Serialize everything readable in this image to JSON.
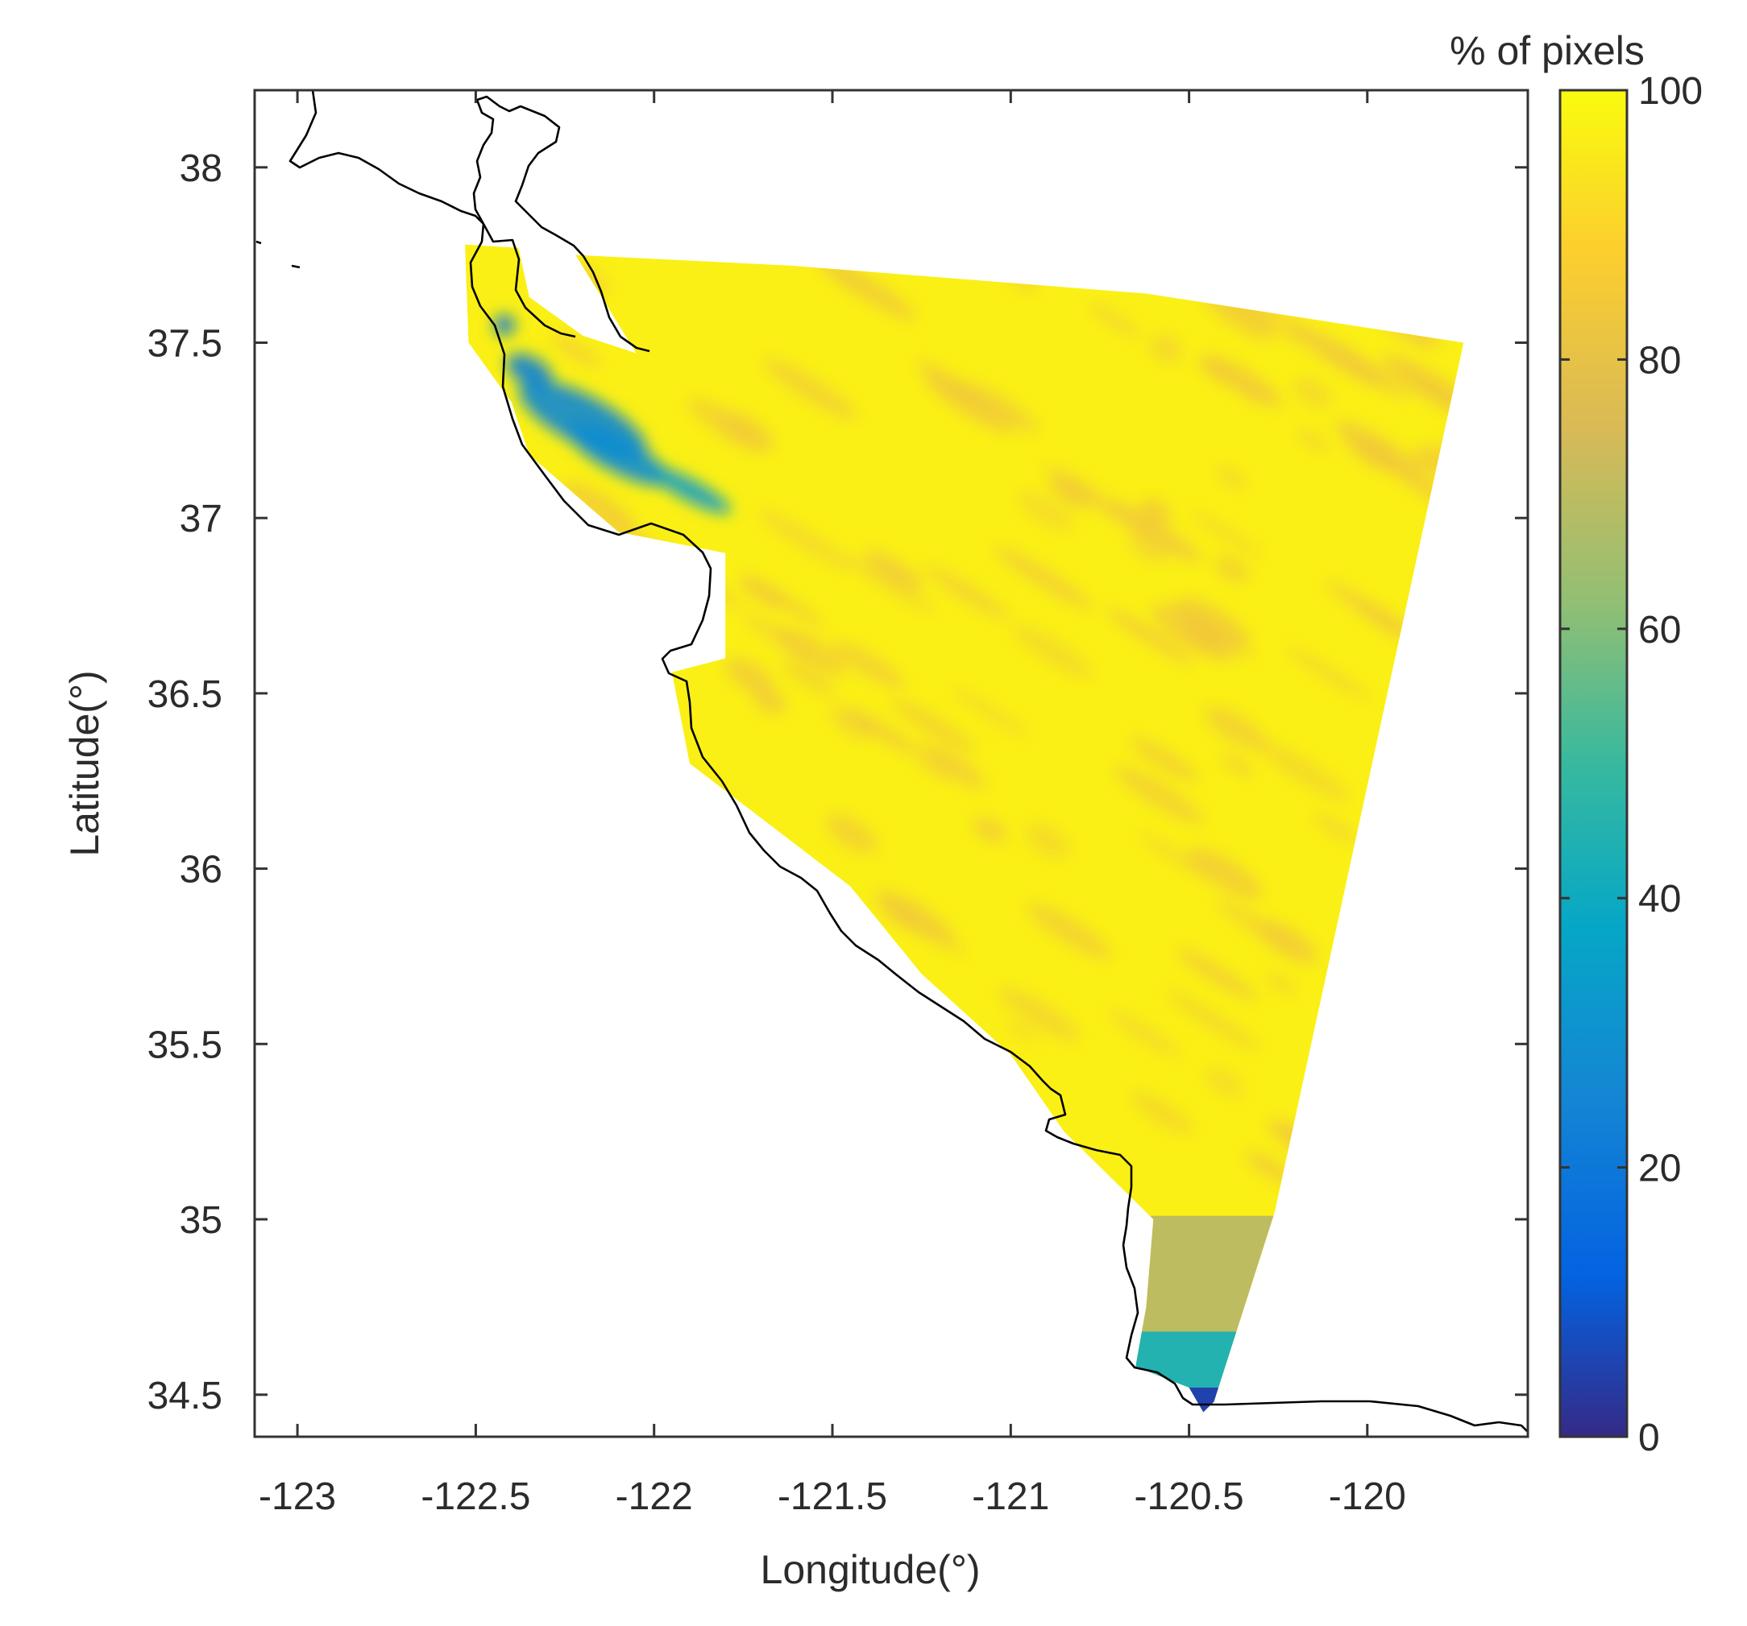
{
  "figure": {
    "x_axis_label": "Longitude(°)",
    "y_axis_label": "Latitude(°)",
    "colorbar_title": "% of pixels"
  },
  "chart_data": {
    "type": "heatmap",
    "xlabel": "Longitude(°)",
    "ylabel": "Latitude(°)",
    "xlim": [
      -123.12,
      -119.55
    ],
    "ylim": [
      34.38,
      38.22
    ],
    "x_ticks": [
      {
        "value": -123,
        "label": "-123"
      },
      {
        "value": -122.5,
        "label": "-122.5"
      },
      {
        "value": -122,
        "label": "-122"
      },
      {
        "value": -121.5,
        "label": "-121.5"
      },
      {
        "value": -121,
        "label": "-121"
      },
      {
        "value": -120.5,
        "label": "-120.5"
      },
      {
        "value": -120,
        "label": "-120"
      }
    ],
    "y_ticks": [
      {
        "value": 34.5,
        "label": "34.5"
      },
      {
        "value": 35,
        "label": "35"
      },
      {
        "value": 35.5,
        "label": "35.5"
      },
      {
        "value": 36,
        "label": "36"
      },
      {
        "value": 36.5,
        "label": "36.5"
      },
      {
        "value": 37,
        "label": "37"
      },
      {
        "value": 37.5,
        "label": "37.5"
      },
      {
        "value": 38,
        "label": "38"
      }
    ],
    "colorbar": {
      "title": "% of pixels",
      "range": [
        0,
        100
      ],
      "ticks": [
        {
          "value": 0,
          "label": "0"
        },
        {
          "value": 20,
          "label": "20"
        },
        {
          "value": 40,
          "label": "40"
        },
        {
          "value": 60,
          "label": "60"
        },
        {
          "value": 80,
          "label": "80"
        },
        {
          "value": 100,
          "label": "100"
        }
      ],
      "colormap": "parula",
      "stops": [
        {
          "value": 0,
          "color": "#352a87"
        },
        {
          "value": 12,
          "color": "#0363e1"
        },
        {
          "value": 25,
          "color": "#1485d4"
        },
        {
          "value": 38,
          "color": "#06a7c6"
        },
        {
          "value": 50,
          "color": "#38b99e"
        },
        {
          "value": 62,
          "color": "#92bf73"
        },
        {
          "value": 75,
          "color": "#d9ba56"
        },
        {
          "value": 88,
          "color": "#fcce2e"
        },
        {
          "value": 100,
          "color": "#f9fb0e"
        }
      ]
    },
    "data_region": {
      "outline": [
        [
          -122.53,
          37.78
        ],
        [
          -122.38,
          37.77
        ],
        [
          -122.35,
          37.63
        ],
        [
          -122.2,
          37.52
        ],
        [
          -122.05,
          37.47
        ],
        [
          -122.22,
          37.75
        ],
        [
          -121.62,
          37.72
        ],
        [
          -120.62,
          37.64
        ],
        [
          -119.73,
          37.5
        ],
        [
          -120.26,
          35.02
        ],
        [
          -120.43,
          34.48
        ],
        [
          -120.46,
          34.45
        ],
        [
          -120.5,
          34.52
        ],
        [
          -120.65,
          34.58
        ],
        [
          -120.62,
          34.75
        ],
        [
          -120.6,
          35.0
        ],
        [
          -120.75,
          35.15
        ],
        [
          -120.85,
          35.25
        ],
        [
          -121.0,
          35.47
        ],
        [
          -121.25,
          35.7
        ],
        [
          -121.45,
          35.95
        ],
        [
          -121.9,
          36.3
        ],
        [
          -121.95,
          36.56
        ],
        [
          -121.8,
          36.6
        ],
        [
          -121.8,
          36.9
        ],
        [
          -122.1,
          36.96
        ],
        [
          -122.35,
          37.18
        ],
        [
          -122.4,
          37.33
        ],
        [
          -122.52,
          37.5
        ],
        [
          -122.53,
          37.78
        ]
      ],
      "dominant_value": 97,
      "secondary_value": 84,
      "low_patches": [
        {
          "lon": -122.42,
          "lat": 37.55,
          "value": 22,
          "rlon": 0.03,
          "rlat": 0.03
        },
        {
          "lon": -122.35,
          "lat": 37.42,
          "value": 24,
          "rlon": 0.07,
          "rlat": 0.04
        },
        {
          "lon": -122.2,
          "lat": 37.28,
          "value": 26,
          "rlon": 0.2,
          "rlat": 0.07
        },
        {
          "lon": -122.1,
          "lat": 37.18,
          "value": 28,
          "rlon": 0.16,
          "rlat": 0.05
        },
        {
          "lon": -121.9,
          "lat": 37.08,
          "value": 34,
          "rlon": 0.13,
          "rlat": 0.03
        }
      ],
      "bands": [
        {
          "lat_min": 34.68,
          "lat_max": 35.01,
          "value": 70
        },
        {
          "lat_min": 34.52,
          "lat_max": 34.68,
          "value": 45
        },
        {
          "lat_min": 34.44,
          "lat_max": 34.52,
          "value": 5
        }
      ]
    }
  }
}
